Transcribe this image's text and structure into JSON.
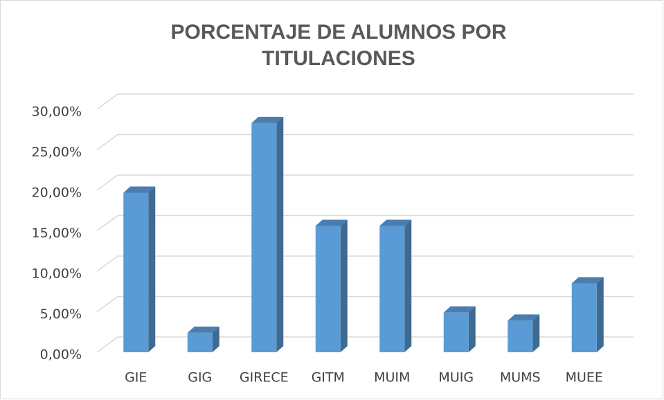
{
  "chart_data": {
    "type": "bar",
    "title": "PORCENTAJE DE ALUMNOS POR TITULACIONES",
    "categories": [
      "GIE",
      "GIG",
      "GIRECE",
      "GITM",
      "MUIM",
      "MUIG",
      "MUMS",
      "MUEE"
    ],
    "values": [
      19.7,
      2.4,
      28.3,
      15.6,
      15.6,
      4.9,
      3.9,
      8.5
    ],
    "color": "#5b9bd5",
    "ylim": [
      0,
      30
    ],
    "yticks": [
      {
        "value": 0,
        "label": "0,00%"
      },
      {
        "value": 5,
        "label": "5,00%"
      },
      {
        "value": 10,
        "label": "10,00%"
      },
      {
        "value": 15,
        "label": "15,00%"
      },
      {
        "value": 20,
        "label": "20,00%"
      },
      {
        "value": 25,
        "label": "25,00%"
      },
      {
        "value": 30,
        "label": "30,00%"
      }
    ],
    "grid": true
  }
}
